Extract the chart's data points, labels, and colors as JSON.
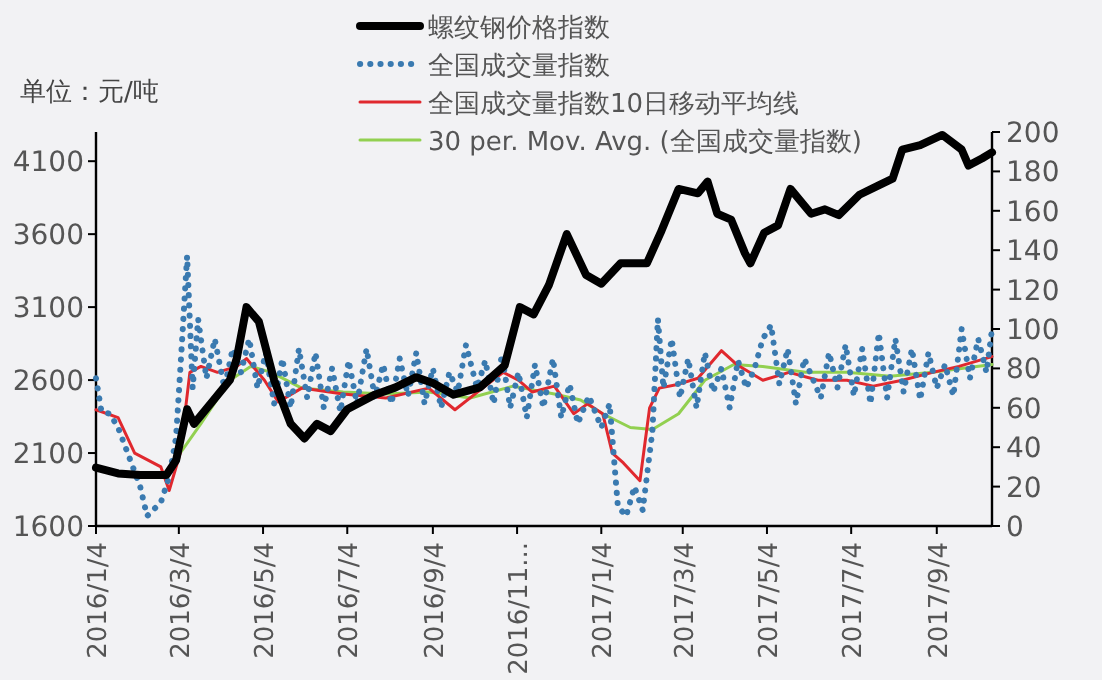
{
  "chart_data": {
    "type": "line",
    "legend": "top",
    "annotations": [
      "单位：元/吨"
    ],
    "xlim": [
      "2016-01-04",
      "2017-10-14"
    ],
    "xticks": [
      {
        "value": "2016-01-04",
        "label": "2016/1/4"
      },
      {
        "value": "2016-03-04",
        "label": "2016/3/4"
      },
      {
        "value": "2016-05-04",
        "label": "2016/5/4"
      },
      {
        "value": "2016-07-04",
        "label": "2016/7/4"
      },
      {
        "value": "2016-09-04",
        "label": "2016/9/4"
      },
      {
        "value": "2016-11-04",
        "label": "2016/11..."
      },
      {
        "value": "2017-01-04",
        "label": "2017/1/4"
      },
      {
        "value": "2017-03-04",
        "label": "2017/3/4"
      },
      {
        "value": "2017-05-04",
        "label": "2017/5/4"
      },
      {
        "value": "2017-07-04",
        "label": "2017/7/4"
      },
      {
        "value": "2017-09-04",
        "label": "2017/9/4"
      }
    ],
    "ylim": [
      1600,
      4300
    ],
    "yticks": [
      1600,
      2100,
      2600,
      3100,
      3600,
      4100
    ],
    "y2lim": [
      0,
      200
    ],
    "y2ticks": [
      0,
      20,
      40,
      60,
      80,
      100,
      120,
      140,
      160,
      180,
      200
    ],
    "series": [
      {
        "name": "螺纹钢价格指数",
        "color": "#000000",
        "line_style": "solid",
        "x": [
          "2016-01-04",
          "2016-01-20",
          "2016-02-05",
          "2016-02-24",
          "2016-03-02",
          "2016-03-10",
          "2016-03-15",
          "2016-03-28",
          "2016-04-10",
          "2016-04-15",
          "2016-04-22",
          "2016-05-01",
          "2016-05-12",
          "2016-05-24",
          "2016-06-03",
          "2016-06-12",
          "2016-06-22",
          "2016-07-04",
          "2016-07-24",
          "2016-08-08",
          "2016-08-23",
          "2016-09-04",
          "2016-09-19",
          "2016-10-08",
          "2016-10-26",
          "2016-11-06",
          "2016-11-16",
          "2016-11-27",
          "2016-12-10",
          "2016-12-24",
          "2017-01-04",
          "2017-01-18",
          "2017-02-06",
          "2017-02-16",
          "2017-03-01",
          "2017-03-15",
          "2017-03-22",
          "2017-03-29",
          "2017-04-08",
          "2017-04-18",
          "2017-04-22",
          "2017-05-02",
          "2017-05-12",
          "2017-05-21",
          "2017-06-05",
          "2017-06-15",
          "2017-06-25",
          "2017-07-10",
          "2017-07-25",
          "2017-08-03",
          "2017-08-10",
          "2017-08-23",
          "2017-09-08",
          "2017-09-22",
          "2017-09-27",
          "2017-10-07",
          "2017-10-14"
        ],
        "values": [
          2000,
          1960,
          1950,
          1950,
          2050,
          2400,
          2300,
          2450,
          2600,
          2750,
          3100,
          3000,
          2600,
          2300,
          2200,
          2300,
          2250,
          2400,
          2500,
          2550,
          2620,
          2580,
          2500,
          2550,
          2700,
          3100,
          3050,
          3250,
          3600,
          3320,
          3260,
          3400,
          3400,
          3610,
          3910,
          3880,
          3960,
          3740,
          3700,
          3470,
          3400,
          3610,
          3660,
          3910,
          3740,
          3770,
          3730,
          3870,
          3940,
          3980,
          4180,
          4210,
          4280,
          4180,
          4070,
          4120,
          4160
        ]
      },
      {
        "name": "全国成交量指数",
        "color": "#3a7ab0",
        "axis": "y2",
        "line_style": "dotted",
        "x": [
          "2016-01-04",
          "2016-01-08",
          "2016-01-14",
          "2016-01-20",
          "2016-01-28",
          "2016-02-05",
          "2016-02-10",
          "2016-02-20",
          "2016-02-26",
          "2016-03-02",
          "2016-03-06",
          "2016-03-10",
          "2016-03-14",
          "2016-03-18",
          "2016-03-24",
          "2016-03-30",
          "2016-04-06",
          "2016-04-12",
          "2016-04-18",
          "2016-04-24",
          "2016-04-30",
          "2016-05-06",
          "2016-05-12",
          "2016-05-18",
          "2016-05-24",
          "2016-05-30",
          "2016-06-05",
          "2016-06-11",
          "2016-06-17",
          "2016-06-23",
          "2016-06-29",
          "2016-07-05",
          "2016-07-11",
          "2016-07-18",
          "2016-07-24",
          "2016-07-30",
          "2016-08-05",
          "2016-08-11",
          "2016-08-17",
          "2016-08-23",
          "2016-08-29",
          "2016-09-04",
          "2016-09-10",
          "2016-09-16",
          "2016-09-22",
          "2016-09-28",
          "2016-10-06",
          "2016-10-12",
          "2016-10-18",
          "2016-10-24",
          "2016-10-30",
          "2016-11-05",
          "2016-11-11",
          "2016-11-17",
          "2016-11-23",
          "2016-11-30",
          "2016-12-06",
          "2016-12-12",
          "2016-12-18",
          "2016-12-26",
          "2017-01-04",
          "2017-01-10",
          "2017-01-16",
          "2017-01-22",
          "2017-01-28",
          "2017-02-03",
          "2017-02-10",
          "2017-02-14",
          "2017-02-18",
          "2017-02-24",
          "2017-03-02",
          "2017-03-08",
          "2017-03-14",
          "2017-03-20",
          "2017-03-26",
          "2017-04-01",
          "2017-04-07",
          "2017-04-13",
          "2017-04-19",
          "2017-04-25",
          "2017-05-01",
          "2017-05-07",
          "2017-05-13",
          "2017-05-19",
          "2017-05-25",
          "2017-05-31",
          "2017-06-06",
          "2017-06-12",
          "2017-06-18",
          "2017-06-24",
          "2017-06-30",
          "2017-07-06",
          "2017-07-12",
          "2017-07-18",
          "2017-07-24",
          "2017-07-30",
          "2017-08-05",
          "2017-08-11",
          "2017-08-17",
          "2017-08-23",
          "2017-08-29",
          "2017-09-04",
          "2017-09-10",
          "2017-09-16",
          "2017-09-22",
          "2017-09-28",
          "2017-10-04",
          "2017-10-10",
          "2017-10-14"
        ],
        "values": [
          75,
          58,
          57,
          50,
          35,
          20,
          5,
          12,
          25,
          45,
          90,
          137,
          70,
          105,
          75,
          95,
          70,
          90,
          78,
          95,
          70,
          88,
          62,
          85,
          60,
          90,
          65,
          88,
          60,
          80,
          58,
          84,
          62,
          90,
          65,
          82,
          62,
          85,
          66,
          88,
          62,
          80,
          60,
          78,
          68,
          92,
          70,
          84,
          62,
          87,
          60,
          78,
          55,
          82,
          60,
          85,
          55,
          72,
          52,
          66,
          50,
          62,
          10,
          5,
          20,
          8,
          48,
          105,
          70,
          95,
          65,
          85,
          60,
          88,
          68,
          80,
          60,
          84,
          70,
          80,
          95,
          102,
          72,
          90,
          62,
          85,
          75,
          65,
          88,
          70,
          92,
          66,
          90,
          62,
          98,
          65,
          95,
          68,
          90,
          64,
          88,
          70,
          82,
          66,
          100,
          75,
          95,
          78,
          100
        ]
      },
      {
        "name": "全国成交量指数10日移动平均线",
        "color": "#e0282e",
        "axis": "y2",
        "line_style": "solid",
        "x": [
          "2016-01-04",
          "2016-01-20",
          "2016-02-01",
          "2016-02-20",
          "2016-02-26",
          "2016-03-05",
          "2016-03-12",
          "2016-03-20",
          "2016-04-01",
          "2016-04-15",
          "2016-04-22",
          "2016-05-05",
          "2016-05-15",
          "2016-06-01",
          "2016-07-01",
          "2016-08-01",
          "2016-09-01",
          "2016-09-20",
          "2016-10-10",
          "2016-10-25",
          "2016-11-05",
          "2016-11-15",
          "2016-12-01",
          "2016-12-15",
          "2016-12-25",
          "2017-01-05",
          "2017-01-12",
          "2017-01-20",
          "2017-02-01",
          "2017-02-08",
          "2017-02-15",
          "2017-03-01",
          "2017-03-15",
          "2017-04-01",
          "2017-04-12",
          "2017-05-01",
          "2017-05-20",
          "2017-06-10",
          "2017-07-01",
          "2017-07-20",
          "2017-08-10",
          "2017-09-01",
          "2017-09-20",
          "2017-10-14"
        ],
        "values": [
          59,
          55,
          37,
          30,
          18,
          37,
          78,
          81,
          78,
          81,
          85,
          74,
          63,
          70,
          67,
          65,
          70,
          59,
          70,
          78,
          74,
          68,
          71,
          57,
          62,
          57,
          37,
          32,
          23,
          60,
          70,
          72,
          75,
          89,
          82,
          74,
          78,
          74,
          74,
          71,
          74,
          78,
          81,
          86
        ]
      },
      {
        "name": "30 per. Mov. Avg. (全国成交量指数)",
        "color": "#92d050",
        "axis": "y2",
        "line_style": "solid",
        "x": [
          "2016-03-01",
          "2016-03-20",
          "2016-04-10",
          "2016-04-25",
          "2016-05-10",
          "2016-06-01",
          "2016-07-01",
          "2016-08-01",
          "2016-09-01",
          "2016-10-01",
          "2016-11-01",
          "2016-12-01",
          "2016-12-20",
          "2017-01-05",
          "2017-01-25",
          "2017-02-10",
          "2017-03-01",
          "2017-03-20",
          "2017-04-10",
          "2017-05-01",
          "2017-06-01",
          "2017-07-01",
          "2017-08-01",
          "2017-09-01",
          "2017-10-14"
        ],
        "values": [
          33,
          52,
          74,
          81,
          78,
          70,
          68,
          67,
          68,
          65,
          71,
          67,
          64,
          57,
          50,
          49,
          57,
          74,
          82,
          81,
          78,
          78,
          76,
          78,
          82
        ]
      }
    ]
  }
}
